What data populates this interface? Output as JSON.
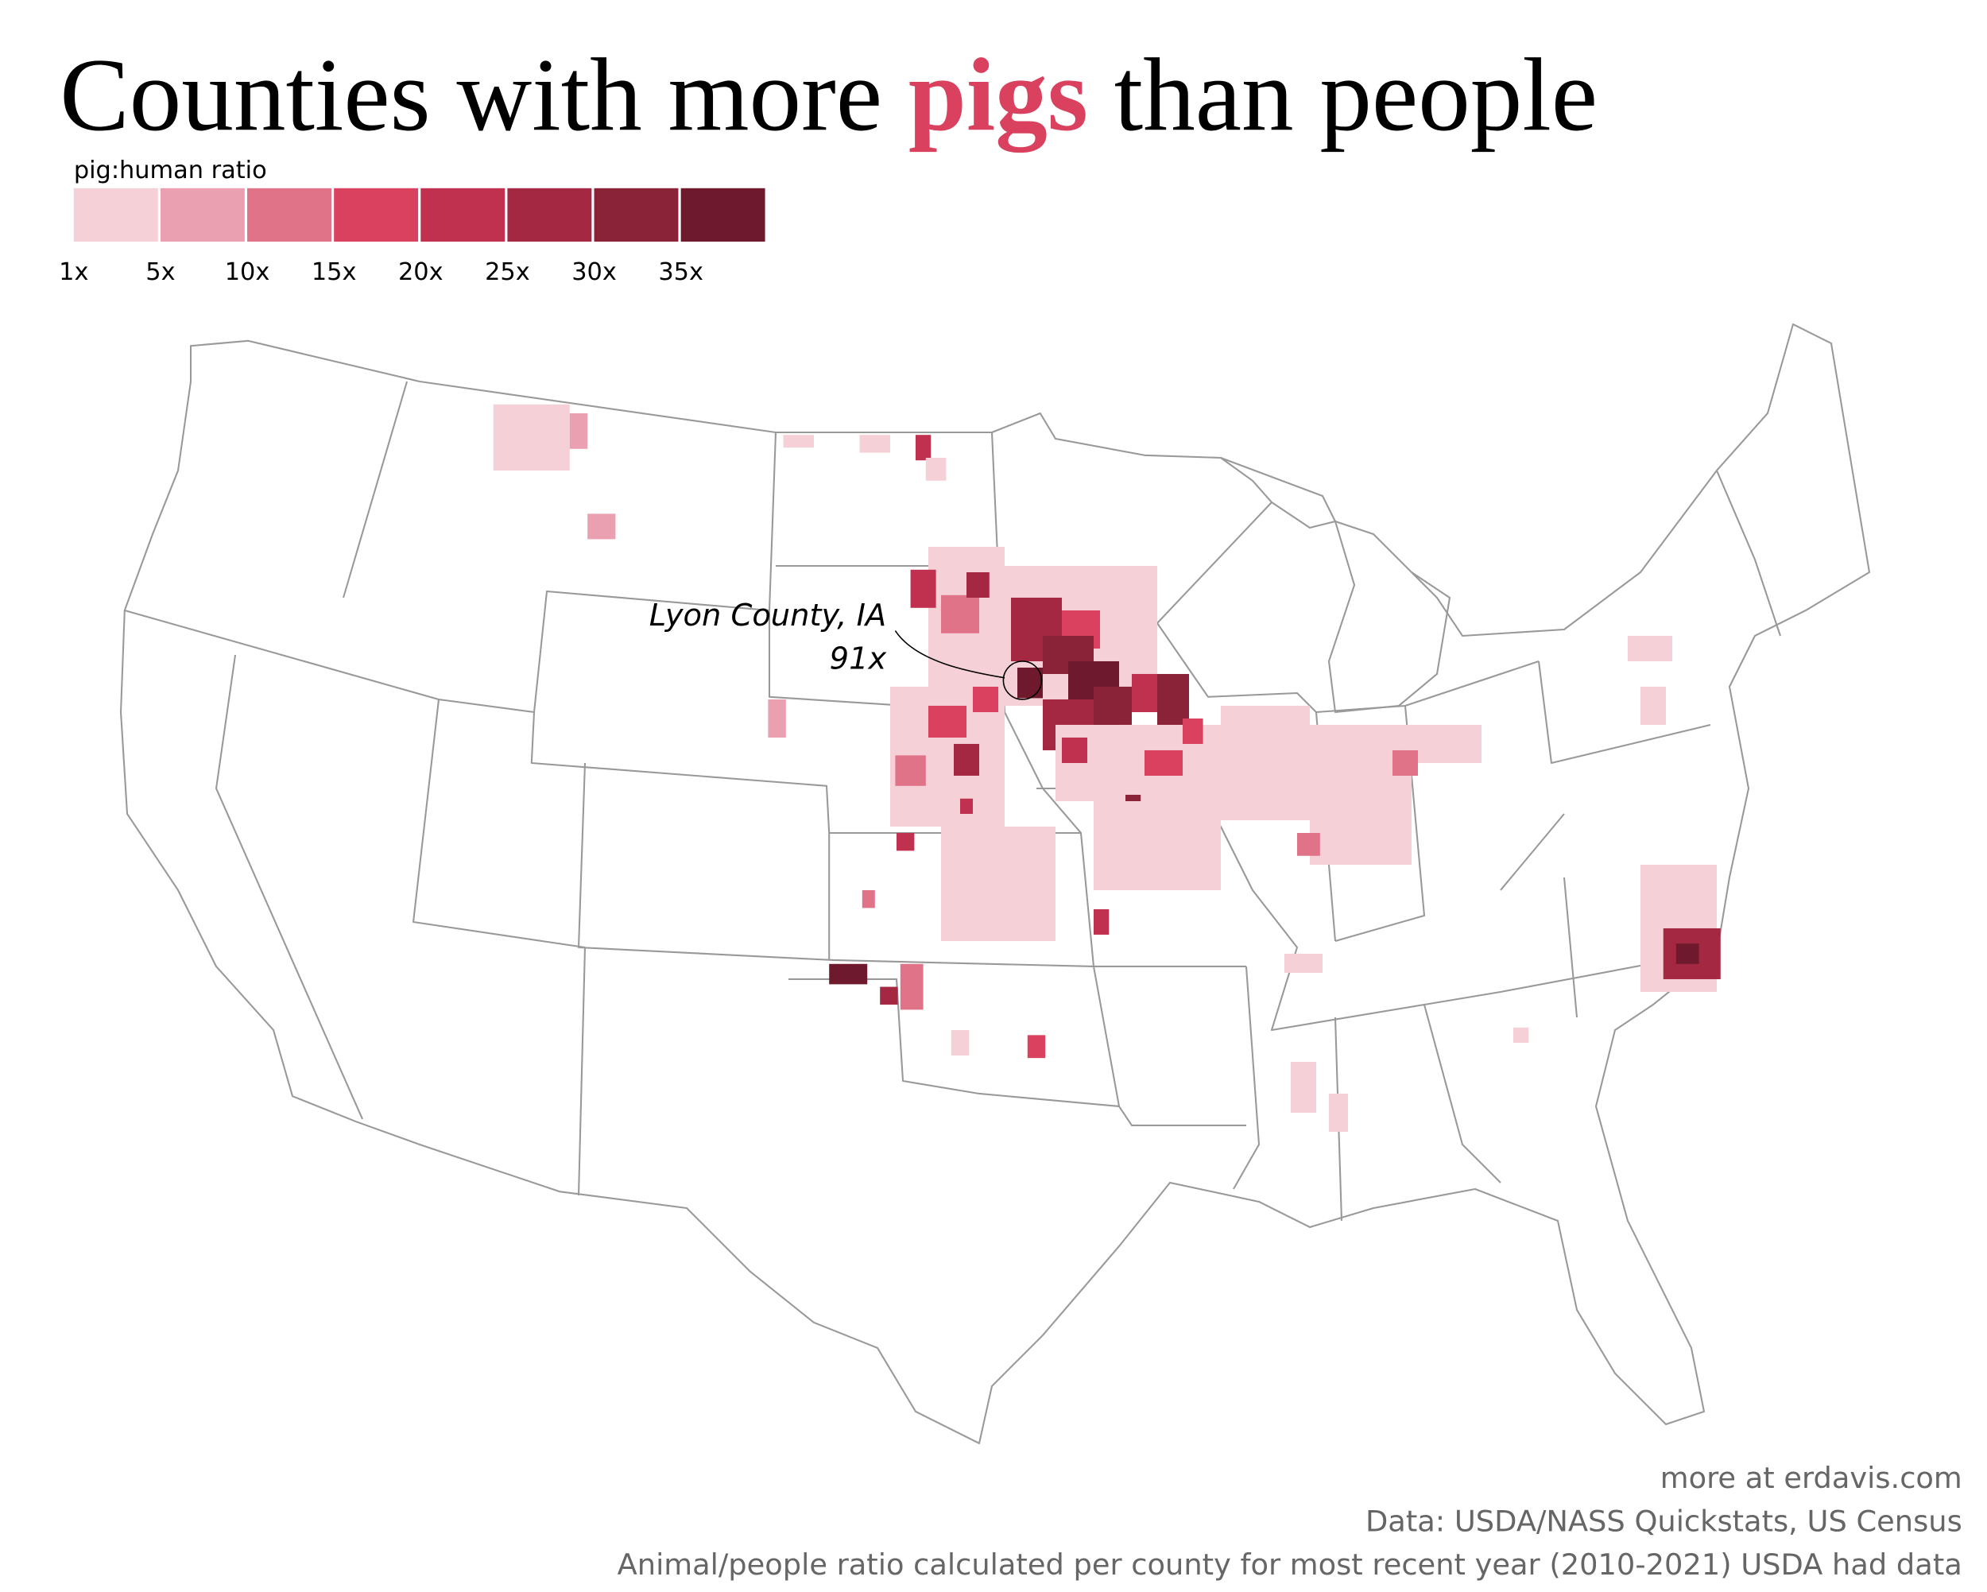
{
  "title": {
    "before": "Counties with more ",
    "highlight": "pigs",
    "after": " than people",
    "highlight_color": "#d9415e"
  },
  "legend": {
    "title": "pig:human ratio",
    "colors": [
      "#f5d0d6",
      "#eaa0b0",
      "#e07388",
      "#d9415e",
      "#c0304f",
      "#a52843",
      "#8a2238",
      "#6e1a2c"
    ],
    "labels": [
      "1x",
      "5x",
      "10x",
      "15x",
      "20x",
      "25x",
      "30x",
      "35x"
    ]
  },
  "annotation": {
    "label": "Lyon County, IA",
    "value": "91x"
  },
  "footer": [
    "more at erdavis.com",
    "Data: USDA/NASS Quickstats, US Census",
    "Animal/people ratio calculated per county for most recent year (2010-2021) USDA had data"
  ]
}
